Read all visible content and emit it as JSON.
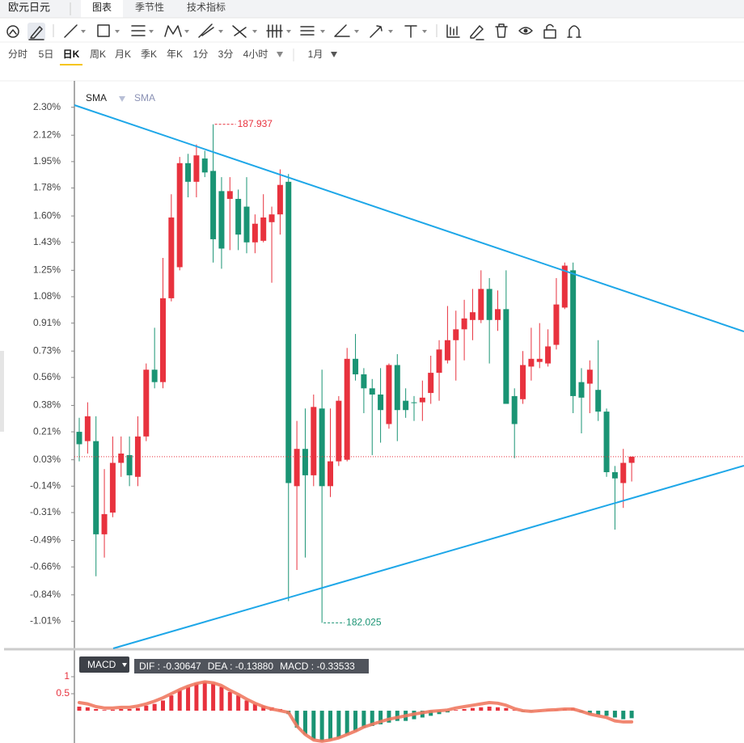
{
  "header": {
    "title": "欧元日元",
    "tabs": [
      "图表",
      "季节性",
      "技术指标"
    ]
  },
  "periods": [
    "分时",
    "5日",
    "日K",
    "周K",
    "月K",
    "季K",
    "年K",
    "1分",
    "3分",
    "4小时"
  ],
  "range": "1月",
  "legend": [
    "SMA",
    "SMA"
  ],
  "chart_data": {
    "type": "candlestick",
    "up_color": "#e8323e",
    "down_color": "#1a9474",
    "ylim": [
      -1.19,
      2.47
    ],
    "yticks": [
      {
        "value": 2.3,
        "label": "2.30%"
      },
      {
        "value": 2.12,
        "label": "2.12%"
      },
      {
        "value": 1.95,
        "label": "1.95%"
      },
      {
        "value": 1.78,
        "label": "1.78%"
      },
      {
        "value": 1.6,
        "label": "1.60%"
      },
      {
        "value": 1.43,
        "label": "1.43%"
      },
      {
        "value": 1.25,
        "label": "1.25%"
      },
      {
        "value": 1.08,
        "label": "1.08%"
      },
      {
        "value": 0.91,
        "label": "0.91%"
      },
      {
        "value": 0.73,
        "label": "0.73%"
      },
      {
        "value": 0.56,
        "label": "0.56%"
      },
      {
        "value": 0.38,
        "label": "0.38%"
      },
      {
        "value": 0.21,
        "label": "0.21%"
      },
      {
        "value": 0.03,
        "label": "0.03%"
      },
      {
        "value": -0.14,
        "label": "-0.14%"
      },
      {
        "value": -0.31,
        "label": "-0.31%"
      },
      {
        "value": -0.49,
        "label": "-0.49%"
      },
      {
        "value": -0.66,
        "label": "-0.66%"
      },
      {
        "value": -0.84,
        "label": "-0.84%"
      },
      {
        "value": -1.01,
        "label": "-1.01%"
      }
    ],
    "open": [
      0.21,
      0.15,
      0.15,
      -0.45,
      -0.31,
      0.01,
      0.06,
      -0.08,
      0.18,
      0.61,
      0.53,
      1.07,
      1.27,
      1.94,
      1.82,
      1.97,
      1.89,
      1.76,
      1.71,
      1.71,
      1.66,
      1.43,
      1.44,
      1.56,
      1.61,
      1.82,
      -0.14,
      0.1,
      -0.07,
      0.36,
      -0.14,
      0.02,
      0.03,
      0.68,
      0.58,
      0.49,
      0.45,
      0.26,
      0.64,
      0.41,
      0.4,
      0.4,
      0.46,
      0.59,
      0.67,
      0.8,
      0.87,
      0.93,
      0.93,
      1.13,
      0.93,
      1.0,
      0.44,
      0.42,
      0.63,
      0.66,
      0.65,
      0.77,
      1.01,
      1.25,
      0.53,
      0.52,
      0.48,
      0.34,
      -0.05,
      -0.12,
      0.01
    ],
    "high": [
      0.3,
      0.4,
      0.31,
      -0.03,
      0.18,
      0.18,
      0.18,
      0.31,
      0.65,
      0.88,
      1.33,
      1.74,
      1.98,
      2.0,
      2.06,
      2.02,
      2.19,
      1.85,
      1.85,
      1.77,
      1.85,
      1.61,
      1.74,
      1.66,
      1.9,
      1.87,
      0.28,
      0.36,
      0.45,
      0.61,
      0.36,
      0.44,
      0.75,
      0.84,
      0.62,
      0.55,
      0.62,
      0.65,
      0.71,
      0.49,
      0.44,
      0.54,
      0.7,
      0.8,
      1.02,
      0.99,
      1.06,
      1.13,
      1.25,
      1.2,
      1.12,
      1.25,
      0.49,
      0.73,
      0.88,
      0.91,
      0.87,
      1.2,
      1.3,
      1.3,
      0.62,
      0.67,
      0.8,
      0.36,
      -0.01,
      0.1,
      0.05
    ],
    "low": [
      0.02,
      0.07,
      -0.72,
      -0.6,
      -0.34,
      -0.08,
      -0.14,
      -0.14,
      0.15,
      0.49,
      0.49,
      1.05,
      1.25,
      1.72,
      1.72,
      1.85,
      1.3,
      1.26,
      1.38,
      1.38,
      1.36,
      1.36,
      1.43,
      1.17,
      1.48,
      -0.88,
      -0.68,
      -0.6,
      -0.14,
      -1.02,
      -0.21,
      -0.01,
      0.02,
      0.54,
      0.33,
      0.06,
      0.14,
      0.23,
      0.15,
      0.3,
      0.28,
      0.28,
      0.39,
      0.41,
      0.65,
      0.54,
      0.67,
      0.8,
      0.91,
      0.65,
      0.86,
      0.39,
      0.04,
      0.39,
      0.54,
      0.62,
      0.63,
      0.74,
      1.0,
      0.33,
      0.2,
      0.33,
      0.28,
      -0.08,
      -0.42,
      -0.28,
      -0.11
    ],
    "close": [
      0.13,
      0.31,
      -0.45,
      -0.32,
      0.01,
      0.07,
      -0.07,
      0.18,
      0.61,
      0.53,
      1.07,
      1.59,
      1.94,
      1.82,
      1.99,
      1.88,
      1.45,
      1.39,
      1.76,
      1.48,
      1.43,
      1.55,
      1.59,
      1.61,
      1.8,
      -0.12,
      0.1,
      -0.07,
      0.37,
      -0.14,
      0.02,
      0.41,
      0.68,
      0.58,
      0.49,
      0.45,
      0.35,
      0.64,
      0.35,
      0.35,
      0.4,
      0.43,
      0.59,
      0.74,
      0.8,
      0.87,
      0.94,
      0.98,
      1.13,
      0.93,
      1.0,
      0.39,
      0.26,
      0.64,
      0.68,
      0.68,
      0.76,
      1.03,
      1.28,
      0.44,
      0.43,
      0.61,
      0.34,
      -0.05,
      -0.09,
      0.01,
      0.05
    ],
    "high_label": "187.937",
    "low_label": "182.025",
    "macd": {
      "title": "MACD",
      "stats": [
        "DIF : -0.30647",
        "DEA : -0.13880",
        "MACD : -0.33533"
      ],
      "ylim": [
        -0.95,
        1.69
      ],
      "yticks": [
        0.5,
        1
      ],
      "up_color": "#e8323e",
      "down_color": "#1a9474",
      "line_color": "#f07a62",
      "values": [
        0.12,
        0.1,
        0.05,
        0.02,
        0.03,
        0.05,
        0.05,
        0.08,
        0.15,
        0.2,
        0.3,
        0.45,
        0.6,
        0.7,
        0.8,
        0.85,
        0.8,
        0.7,
        0.55,
        0.45,
        0.3,
        0.2,
        0.15,
        0.1,
        0.05,
        -0.1,
        -0.5,
        -0.7,
        -0.85,
        -0.9,
        -0.85,
        -0.8,
        -0.7,
        -0.6,
        -0.5,
        -0.45,
        -0.4,
        -0.35,
        -0.3,
        -0.3,
        -0.25,
        -0.2,
        -0.15,
        -0.1,
        -0.05,
        0.02,
        0.05,
        0.08,
        0.1,
        0.12,
        0.1,
        0.08,
        0.02,
        -0.03,
        -0.02,
        0.0,
        0.02,
        0.03,
        0.05,
        0.08,
        -0.05,
        -0.1,
        -0.12,
        -0.15,
        -0.2,
        -0.25,
        -0.22
      ],
      "line": [
        0.24,
        0.2,
        0.12,
        0.08,
        0.08,
        0.1,
        0.1,
        0.14,
        0.2,
        0.28,
        0.38,
        0.5,
        0.62,
        0.72,
        0.8,
        0.85,
        0.82,
        0.74,
        0.6,
        0.48,
        0.34,
        0.22,
        0.12,
        0.05,
        0.0,
        -0.05,
        -0.45,
        -0.7,
        -0.86,
        -0.9,
        -0.86,
        -0.8,
        -0.7,
        -0.6,
        -0.48,
        -0.4,
        -0.32,
        -0.25,
        -0.2,
        -0.15,
        -0.1,
        -0.06,
        -0.02,
        0.0,
        0.02,
        0.08,
        0.12,
        0.16,
        0.2,
        0.24,
        0.22,
        0.16,
        0.06,
        0.0,
        -0.02,
        0.0,
        0.02,
        0.03,
        0.05,
        0.05,
        -0.02,
        -0.1,
        -0.15,
        -0.2,
        -0.3,
        -0.33,
        -0.33
      ]
    }
  }
}
